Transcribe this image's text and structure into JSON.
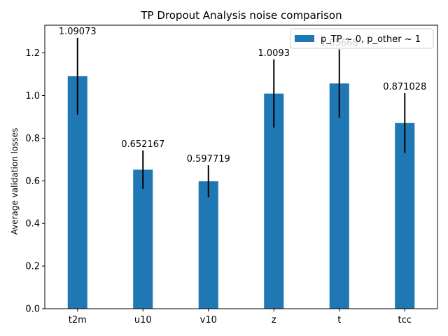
{
  "chart_data": {
    "type": "bar",
    "title": "TP Dropout Analysis noise comparison",
    "xlabel": "",
    "ylabel": "Average validation losses",
    "categories": [
      "t2m",
      "u10",
      "v10",
      "z",
      "t",
      "tcc"
    ],
    "series": [
      {
        "name": "p_TP ~ 0, p_other ~ 1",
        "values": [
          1.09073,
          0.652167,
          0.597719,
          1.0093,
          1.05668,
          0.871028
        ],
        "errors": [
          0.18,
          0.09,
          0.075,
          0.16,
          0.16,
          0.14
        ],
        "labels": [
          "1.09073",
          "0.652167",
          "0.597719",
          "1.0093",
          "1.05668",
          "0.871028"
        ],
        "color": "#1f77b4"
      }
    ],
    "ylim": [
      0,
      1.33
    ],
    "yticks": [
      0.0,
      0.2,
      0.4,
      0.6,
      0.8,
      1.0,
      1.2
    ],
    "ytick_labels": [
      "0.0",
      "0.2",
      "0.4",
      "0.6",
      "0.8",
      "1.0",
      "1.2"
    ],
    "legend_position": "top-right",
    "grid": false,
    "error_bar_color": "#000000"
  }
}
